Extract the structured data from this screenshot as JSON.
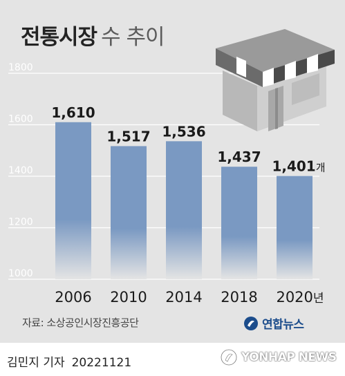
{
  "title": {
    "main": "전통시장",
    "sub": "수 추이"
  },
  "chart_data": {
    "type": "bar",
    "categories": [
      "2006",
      "2010",
      "2014",
      "2018",
      "2020"
    ],
    "category_suffix_last": "년",
    "values": [
      1610,
      1517,
      1536,
      1437,
      1401
    ],
    "value_labels": [
      "1,610",
      "1,517",
      "1,536",
      "1,437",
      "1,401"
    ],
    "value_suffix_last": "개",
    "yticks": [
      "1800",
      "1600",
      "1400",
      "1200",
      "1000"
    ],
    "ylim": [
      1000,
      1800
    ],
    "grid": true,
    "bar_color": "#7a99c2"
  },
  "source": "자료: 소상공인시장진흥공단",
  "logo": {
    "text": "연합뉴스",
    "icon": "yonhap-logo-icon"
  },
  "icons": {
    "illustration": "market-store-icon"
  },
  "footer": {
    "byline": "김민지 기자",
    "date": "20221121",
    "watermark": "YONHAP NEWS"
  }
}
